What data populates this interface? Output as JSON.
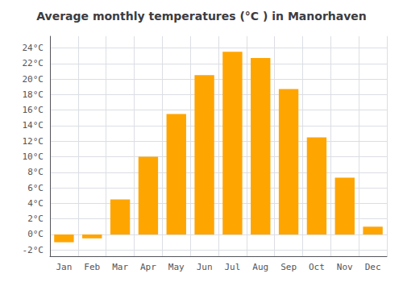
{
  "chart_data": {
    "type": "bar",
    "title": "Average monthly temperatures (°C ) in Manorhaven",
    "categories": [
      "Jan",
      "Feb",
      "Mar",
      "Apr",
      "May",
      "Jun",
      "Jul",
      "Aug",
      "Sep",
      "Oct",
      "Nov",
      "Dec"
    ],
    "values": [
      -1.0,
      -0.5,
      4.5,
      10.0,
      15.5,
      20.5,
      23.5,
      22.7,
      18.7,
      12.5,
      7.3,
      1.0
    ],
    "color": "#FFA500",
    "ylim": [
      -2.8,
      25.5
    ],
    "yticks": [
      {
        "value": -2,
        "label": "-2°C"
      },
      {
        "value": 0,
        "label": "0°C"
      },
      {
        "value": 2,
        "label": "2°C"
      },
      {
        "value": 4,
        "label": "4°C"
      },
      {
        "value": 6,
        "label": "6°C"
      },
      {
        "value": 8,
        "label": "8°C"
      },
      {
        "value": 10,
        "label": "10°C"
      },
      {
        "value": 12,
        "label": "12°C"
      },
      {
        "value": 14,
        "label": "14°C"
      },
      {
        "value": 16,
        "label": "16°C"
      },
      {
        "value": 18,
        "label": "18°C"
      },
      {
        "value": 20,
        "label": "20°C"
      },
      {
        "value": 22,
        "label": "22°C"
      },
      {
        "value": 24,
        "label": "24°C"
      }
    ],
    "grid": true
  }
}
